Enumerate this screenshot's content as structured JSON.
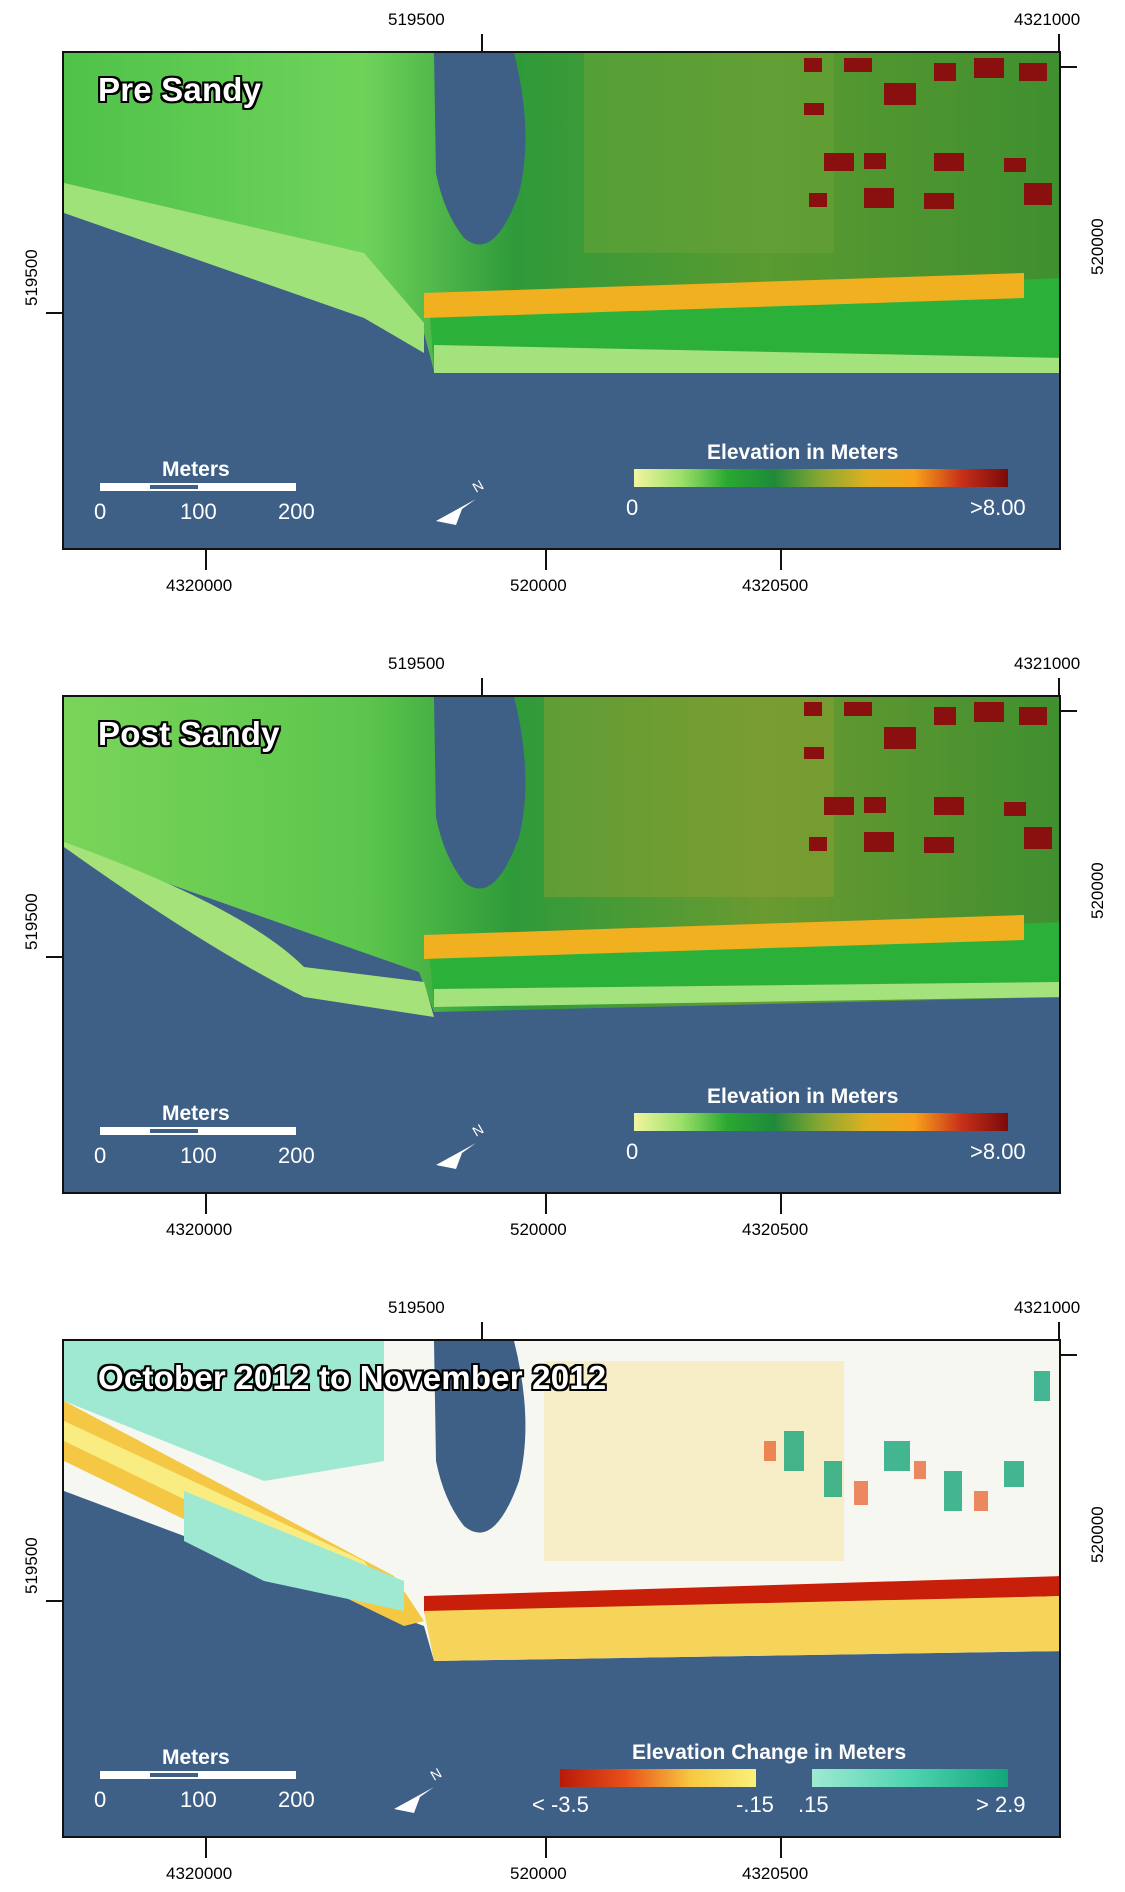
{
  "panels": [
    {
      "title": "Pre Sandy",
      "top_ticks": [
        "519500",
        "4321000"
      ],
      "bottom_ticks": [
        "4320000",
        "520000",
        "4320500"
      ],
      "left_tick": "519500",
      "right_tick": "520000",
      "scale": {
        "title": "Meters",
        "labels": [
          "0",
          "100",
          "200"
        ]
      },
      "legend": {
        "title": "Elevation in Meters",
        "min": "0",
        "max": ">8.00"
      }
    },
    {
      "title": "Post Sandy",
      "top_ticks": [
        "519500",
        "4321000"
      ],
      "bottom_ticks": [
        "4320000",
        "520000",
        "4320500"
      ],
      "left_tick": "519500",
      "right_tick": "520000",
      "scale": {
        "title": "Meters",
        "labels": [
          "0",
          "100",
          "200"
        ]
      },
      "legend": {
        "title": "Elevation in Meters",
        "min": "0",
        "max": ">8.00"
      }
    },
    {
      "title": "October 2012 to November 2012",
      "top_ticks": [
        "519500",
        "4321000"
      ],
      "bottom_ticks": [
        "4320000",
        "520000",
        "4320500"
      ],
      "left_tick": "519500",
      "right_tick": "520000",
      "scale": {
        "title": "Meters",
        "labels": [
          "0",
          "100",
          "200"
        ]
      },
      "legend": {
        "title": "Elevation Change in Meters",
        "neg_min": "< -3.5",
        "neg_max": "-.15",
        "pos_min": ".15",
        "pos_max": "> 2.9"
      }
    }
  ],
  "colors": {
    "water": "#3e5f86",
    "elevation_ramp": [
      "#f2f5a0",
      "#9ee06a",
      "#2aa830",
      "#1f8a3a",
      "#8aa832",
      "#e0b020",
      "#f7a21a",
      "#c8301a",
      "#7a0a0a"
    ],
    "loss_ramp": [
      "#b81a0a",
      "#e8501a",
      "#f7c840",
      "#f9f17a"
    ],
    "gain_ramp": [
      "#9fe9d2",
      "#4fd4b0",
      "#11a67a"
    ]
  },
  "icons": {
    "north_arrow": "north-arrow-icon"
  }
}
